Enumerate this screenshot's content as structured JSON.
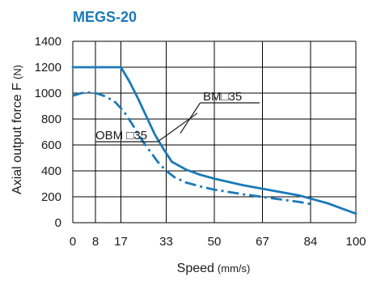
{
  "chart_data": {
    "type": "line",
    "title": "MEGS-20",
    "xlabel": "Speed",
    "xlabel_unit": "(mm/s)",
    "ylabel": "Axial output force F",
    "ylabel_unit": "(N)",
    "x_ticks": [
      "0",
      "8",
      "17",
      "33",
      "50",
      "67",
      "84",
      "100"
    ],
    "y_ticks": [
      "0",
      "200",
      "400",
      "600",
      "800",
      "1000",
      "1200",
      "1400"
    ],
    "xlim": [
      0,
      100
    ],
    "ylim": [
      0,
      1400
    ],
    "grid": true,
    "colors": {
      "title": "#1a7ab8",
      "line": "#1a7ab8",
      "grid": "#000000"
    },
    "series": [
      {
        "name": "BM□35",
        "style": "solid",
        "x": [
          0,
          17,
          20,
          23,
          26,
          29,
          32,
          35,
          40,
          45,
          50,
          60,
          70,
          80,
          85,
          90,
          95,
          100
        ],
        "y": [
          1200,
          1200,
          1090,
          960,
          820,
          680,
          570,
          470,
          410,
          370,
          340,
          290,
          250,
          210,
          180,
          150,
          110,
          70
        ]
      },
      {
        "name": "OBM □35",
        "style": "dash-dot",
        "x": [
          0,
          3,
          6,
          9,
          12,
          15,
          18,
          21,
          24,
          27,
          30,
          33,
          36,
          40,
          45,
          50,
          60,
          70,
          80,
          85
        ],
        "y": [
          980,
          1000,
          1005,
          995,
          970,
          930,
          860,
          760,
          650,
          560,
          470,
          400,
          350,
          310,
          280,
          255,
          220,
          190,
          160,
          140
        ]
      }
    ]
  }
}
